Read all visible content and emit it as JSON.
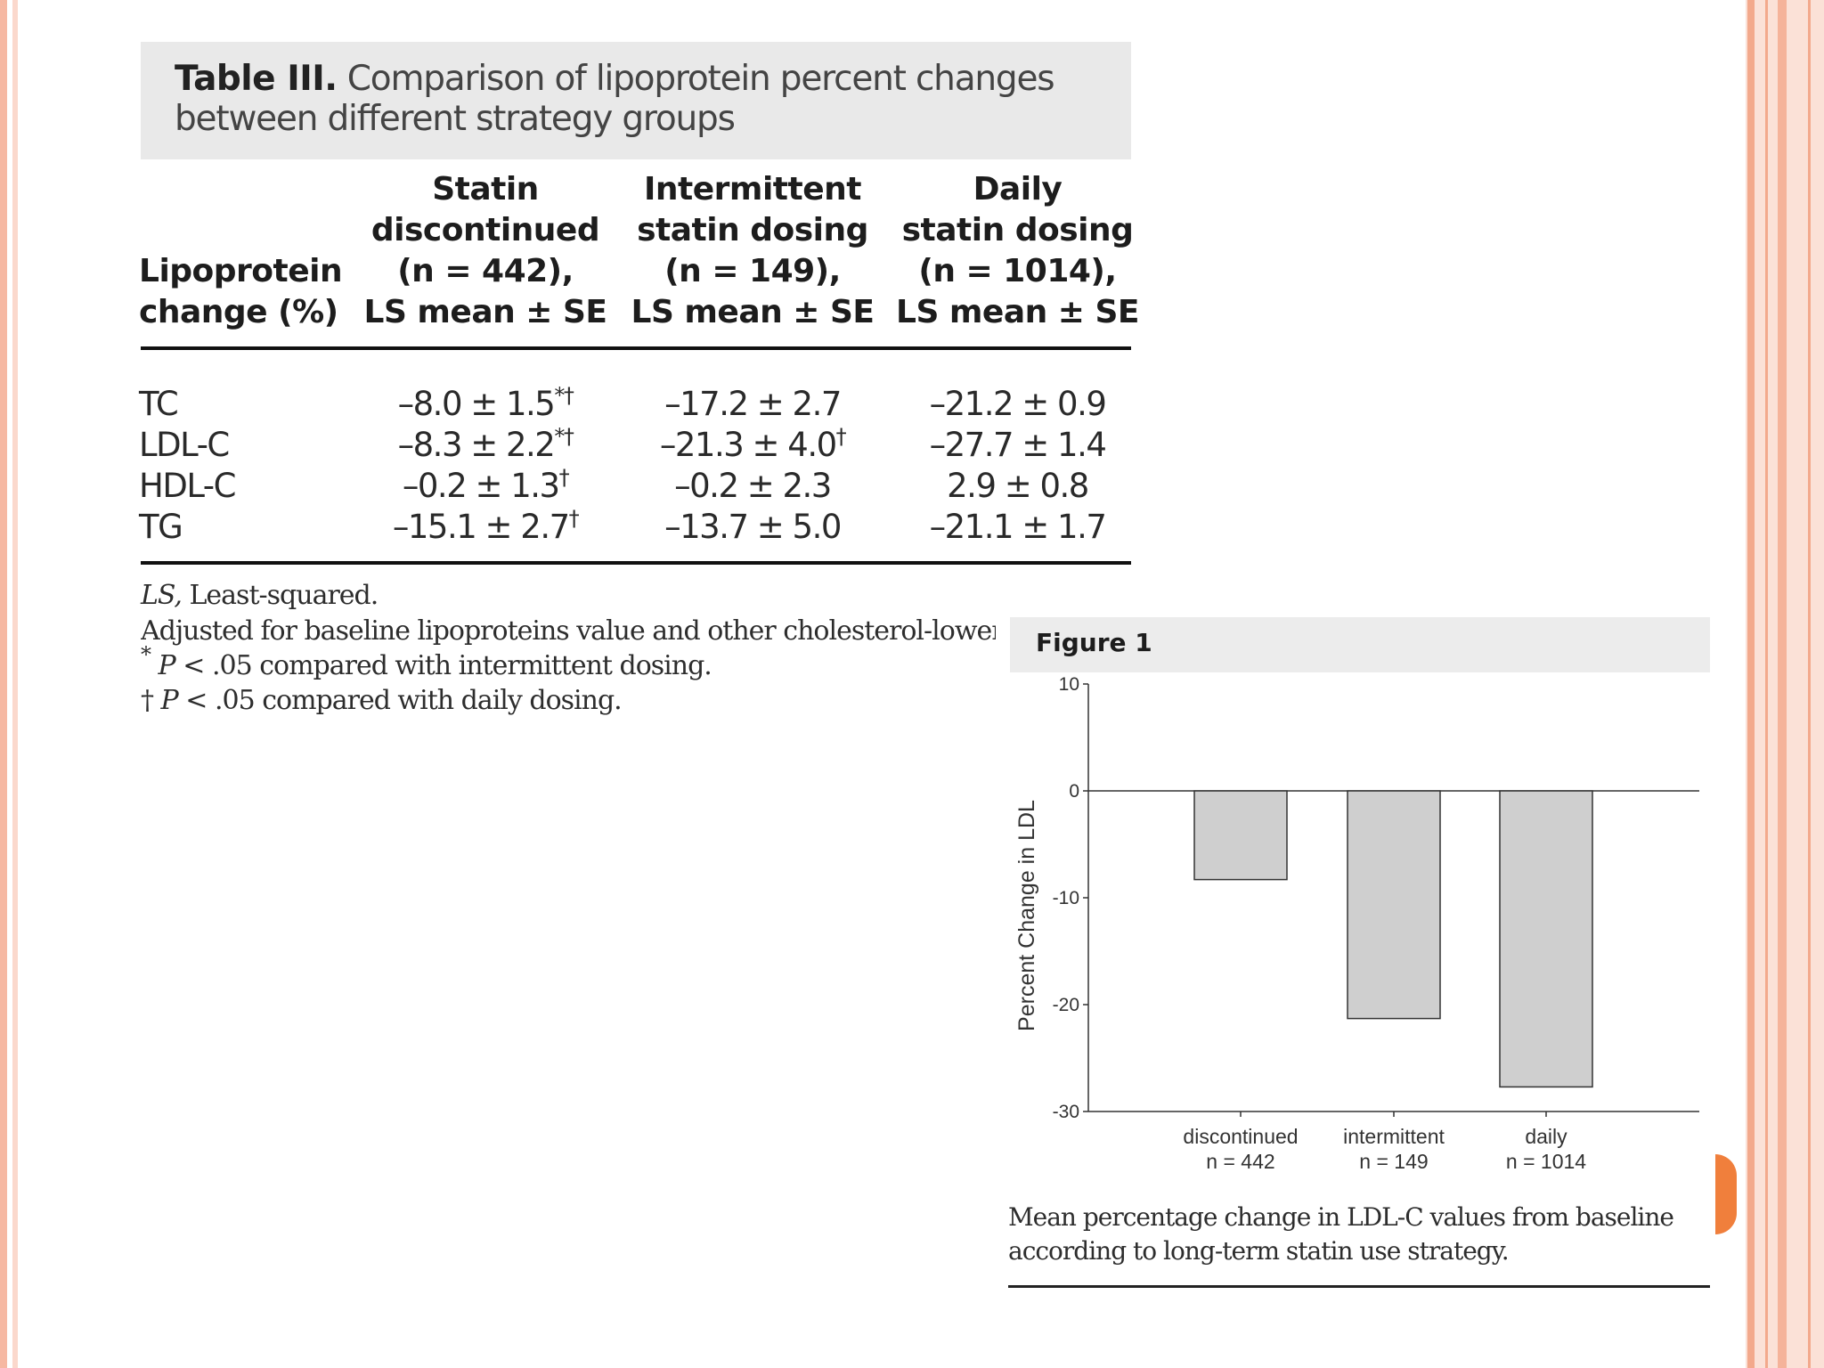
{
  "table": {
    "title_bold": "Table III.",
    "title_rest": "Comparison of lipoprotein percent changes between different strategy groups",
    "headers": {
      "lipoprotein": [
        "Lipoprotein",
        "change (%)"
      ],
      "col1": [
        "Statin",
        "discontinued",
        "(n = 442),",
        "LS mean ± SE"
      ],
      "col2": [
        "Intermittent",
        "statin dosing",
        "(n = 149),",
        "LS mean ± SE"
      ],
      "col3": [
        "Daily",
        "statin dosing",
        "(n = 1014),",
        "LS mean ± SE"
      ]
    },
    "rows": [
      {
        "label": "TC",
        "c1": "–8.0 ± 1.5",
        "c1_sup": "*†",
        "c2": "–17.2 ± 2.7",
        "c2_sup": "",
        "c3": "–21.2 ± 0.9"
      },
      {
        "label": "LDL-C",
        "c1": "–8.3 ± 2.2",
        "c1_sup": "*†",
        "c2": "–21.3 ± 4.0",
        "c2_sup": "†",
        "c3": "–27.7 ± 1.4"
      },
      {
        "label": "HDL-C",
        "c1": "–0.2 ± 1.3",
        "c1_sup": "†",
        "c2": "–0.2 ± 2.3",
        "c2_sup": "",
        "c3": "2.9 ± 0.8"
      },
      {
        "label": "TG",
        "c1": "–15.1 ± 2.7",
        "c1_sup": "†",
        "c2": "–13.7 ± 5.0",
        "c2_sup": "",
        "c3": "–21.1 ± 1.7"
      }
    ],
    "footnotes": {
      "ls_abbr": "LS,",
      "ls_text": "Least-squared.",
      "adjusted": "Adjusted for baseline lipoproteins value and other cholesterol-lowering a",
      "star_sym": "*",
      "star_p": "P",
      "star_text": "< .05 compared with intermittent dosing.",
      "dagger_sym": "†",
      "dagger_p": "P",
      "dagger_text": "< .05 compared with daily dosing."
    }
  },
  "figure": {
    "title": "Figure 1",
    "caption": "Mean percentage change in LDL-C values from baseline according to long-term statin use strategy."
  },
  "chart_data": {
    "type": "bar",
    "title": "",
    "ylabel": "Percent Change in LDL",
    "xlabel": "",
    "categories": [
      {
        "line1": "discontinued",
        "line2": "n = 442"
      },
      {
        "line1": "intermittent",
        "line2": "n = 149"
      },
      {
        "line1": "daily",
        "line2": "n = 1014"
      }
    ],
    "values": [
      -8.3,
      -21.3,
      -27.7
    ],
    "ylim": [
      -30,
      10
    ],
    "yticks": [
      10,
      0,
      -10,
      -20,
      -30
    ],
    "bar_color": "#cfcfcf",
    "grid": false
  }
}
